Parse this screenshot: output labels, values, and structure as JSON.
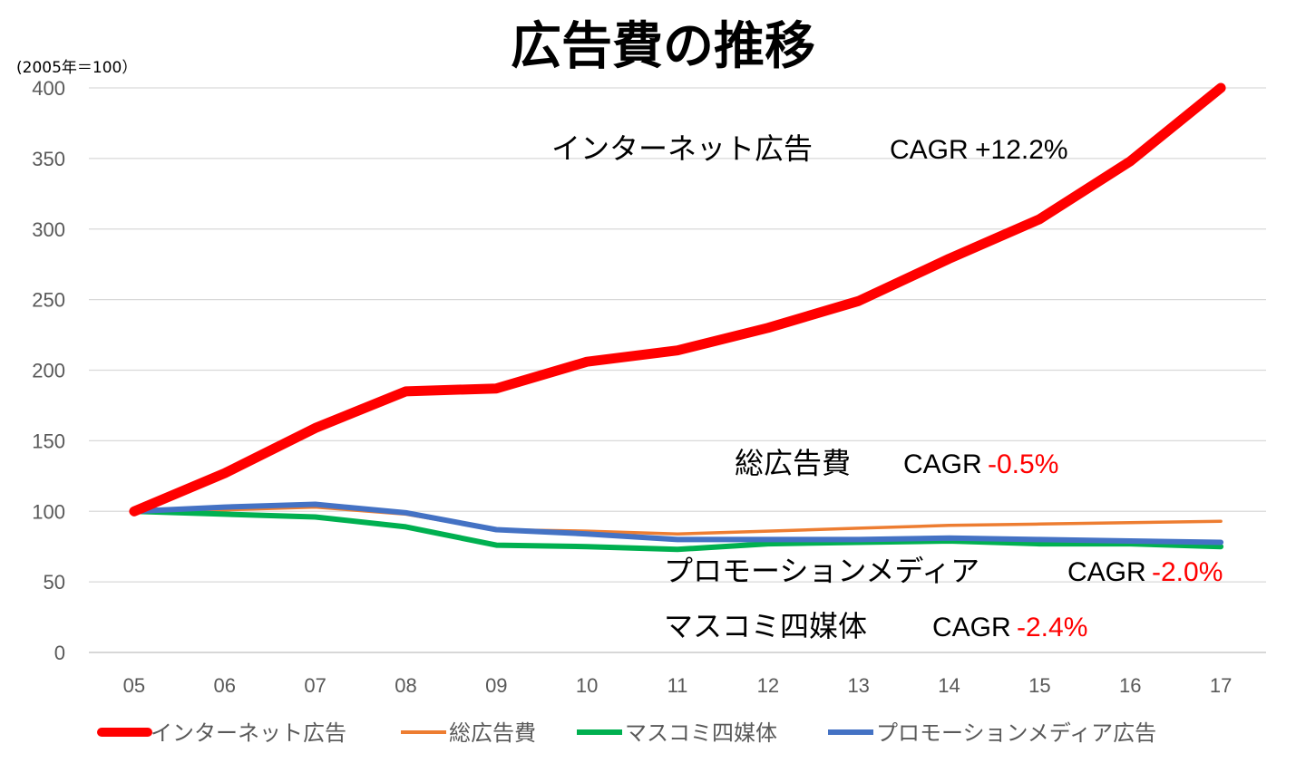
{
  "chart_data": {
    "type": "line",
    "title": "広告費の推移",
    "unit_label": "(2005年＝100）",
    "categories": [
      "05",
      "06",
      "07",
      "08",
      "09",
      "10",
      "11",
      "12",
      "13",
      "14",
      "15",
      "16",
      "17"
    ],
    "ylim": [
      0,
      400
    ],
    "yticks": [
      0,
      50,
      100,
      150,
      200,
      250,
      300,
      350,
      400
    ],
    "grid": true,
    "legend_position": "bottom",
    "series": [
      {
        "name": "インターネット広告",
        "color": "#ff0000",
        "values": [
          100,
          127,
          159,
          185,
          187,
          206,
          214,
          230,
          249,
          279,
          307,
          348,
          400
        ]
      },
      {
        "name": "総広告費",
        "color": "#ed7d31",
        "values": [
          100,
          101,
          103,
          98,
          87,
          86,
          84,
          86,
          88,
          90,
          91,
          92,
          93
        ]
      },
      {
        "name": "マスコミ四媒体",
        "color": "#00b050",
        "values": [
          100,
          98,
          96,
          89,
          76,
          75,
          73,
          77,
          78,
          79,
          77,
          77,
          75
        ]
      },
      {
        "name": "プロモーションメディア広告",
        "color": "#4472c4",
        "values": [
          100,
          103,
          105,
          99,
          87,
          84,
          80,
          80,
          80,
          81,
          80,
          79,
          78
        ]
      }
    ],
    "annotations": [
      {
        "name": "インターネット広告",
        "cagr_label": "CAGR",
        "cagr_value": "+12.2%",
        "negative": false
      },
      {
        "name": "総広告費",
        "cagr_label": "CAGR",
        "cagr_value": "-0.5%",
        "negative": true
      },
      {
        "name": "プロモーションメディア",
        "cagr_label": "CAGR",
        "cagr_value": "-2.0%",
        "negative": true
      },
      {
        "name": "マスコミ四媒体",
        "cagr_label": "CAGR",
        "cagr_value": "-2.4%",
        "negative": true
      }
    ]
  }
}
